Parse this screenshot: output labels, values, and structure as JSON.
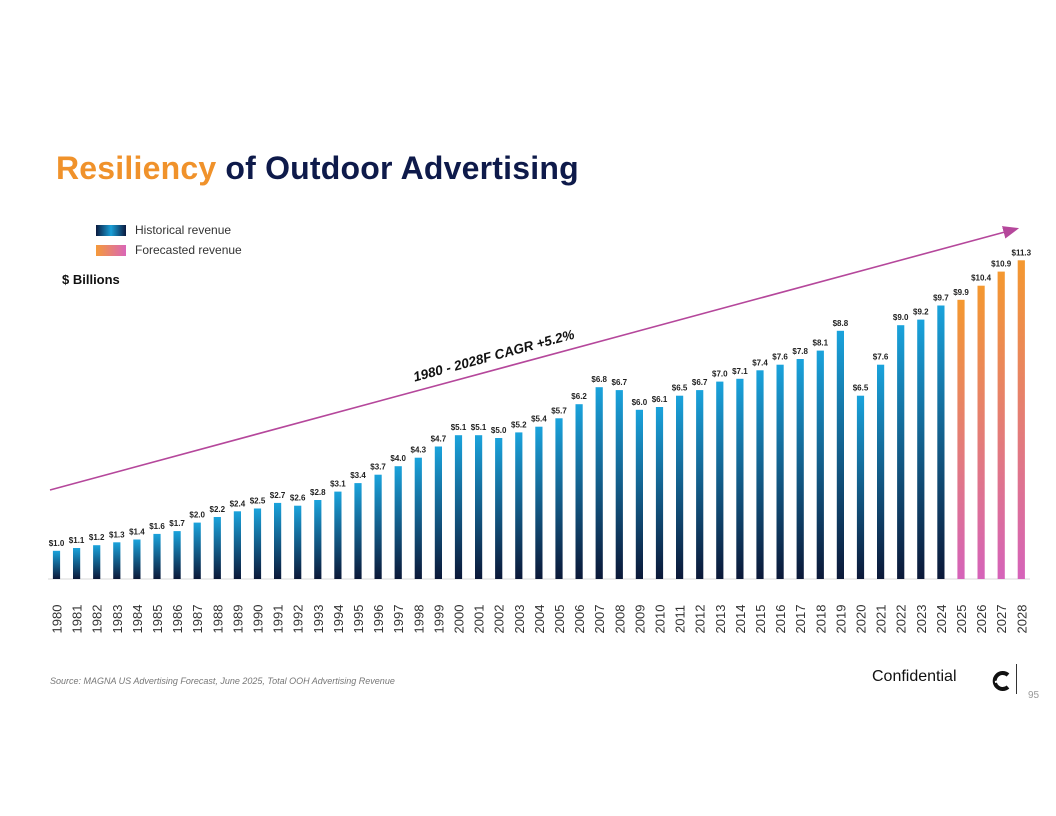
{
  "title": {
    "accent": "Resiliency",
    "rest": " of Outdoor Advertising"
  },
  "legend": [
    {
      "label": "Historical revenue",
      "color": "#1aa0d8"
    },
    {
      "label": "Forecasted revenue",
      "color": "#e27d8a"
    }
  ],
  "unit_label": "$ Billions",
  "trend_label": "1980 - 2028F CAGR +5.2%",
  "chart_data": {
    "type": "bar",
    "categories": [
      "1980",
      "1981",
      "1982",
      "1983",
      "1984",
      "1985",
      "1986",
      "1987",
      "1988",
      "1989",
      "1990",
      "1991",
      "1992",
      "1993",
      "1994",
      "1995",
      "1996",
      "1997",
      "1998",
      "1999",
      "2000",
      "2001",
      "2002",
      "2003",
      "2004",
      "2005",
      "2006",
      "2007",
      "2008",
      "2009",
      "2010",
      "2011",
      "2012",
      "2013",
      "2014",
      "2015",
      "2016",
      "2017",
      "2018",
      "2019",
      "2020",
      "2021",
      "2022",
      "2023",
      "2024",
      "2025",
      "2026",
      "2027",
      "2028"
    ],
    "series": [
      {
        "name": "Historical revenue",
        "color": "#1aa0d8",
        "values": [
          1.0,
          1.1,
          1.2,
          1.3,
          1.4,
          1.6,
          1.7,
          2.0,
          2.2,
          2.4,
          2.5,
          2.7,
          2.6,
          2.8,
          3.1,
          3.4,
          3.7,
          4.0,
          4.3,
          4.7,
          5.1,
          5.1,
          5.0,
          5.2,
          5.4,
          5.7,
          6.2,
          6.8,
          6.7,
          6.0,
          6.1,
          6.5,
          6.7,
          7.0,
          7.1,
          7.4,
          7.6,
          7.8,
          8.1,
          8.8,
          6.5,
          7.6,
          9.0,
          9.2,
          9.7,
          null,
          null,
          null,
          null
        ]
      },
      {
        "name": "Forecasted revenue",
        "color": "#e27d8a",
        "values": [
          null,
          null,
          null,
          null,
          null,
          null,
          null,
          null,
          null,
          null,
          null,
          null,
          null,
          null,
          null,
          null,
          null,
          null,
          null,
          null,
          null,
          null,
          null,
          null,
          null,
          null,
          null,
          null,
          null,
          null,
          null,
          null,
          null,
          null,
          null,
          null,
          null,
          null,
          null,
          null,
          null,
          null,
          null,
          null,
          null,
          9.9,
          10.4,
          10.9,
          11.3
        ]
      }
    ],
    "data_labels": [
      "$1.0",
      "$1.1",
      "$1.2",
      "$1.3",
      "$1.4",
      "$1.6",
      "$1.7",
      "$2.0",
      "$2.2",
      "$2.4",
      "$2.5",
      "$2.7",
      "$2.6",
      "$2.8",
      "$3.1",
      "$3.4",
      "$3.7",
      "$4.0",
      "$4.3",
      "$4.7",
      "$5.1",
      "$5.1",
      "$5.0",
      "$5.2",
      "$5.4",
      "$5.7",
      "$6.2",
      "$6.8",
      "$6.7",
      "$6.0",
      "$6.1",
      "$6.5",
      "$6.7",
      "$7.0",
      "$7.1",
      "$7.4",
      "$7.6",
      "$7.8",
      "$8.1",
      "$8.8",
      "$6.5",
      "$7.6",
      "$9.0",
      "$9.2",
      "$9.7",
      "$9.9",
      "$10.4",
      "$10.9",
      "$11.3"
    ],
    "ylabel": "$ Billions",
    "ylim": [
      0,
      12
    ],
    "grid": false,
    "legend_position": "top-left"
  },
  "footer": {
    "source": "Source: MAGNA US Advertising Forecast, June 2025, Total OOH Advertising Revenue",
    "confidential": "Confidential",
    "page_number": "95"
  }
}
